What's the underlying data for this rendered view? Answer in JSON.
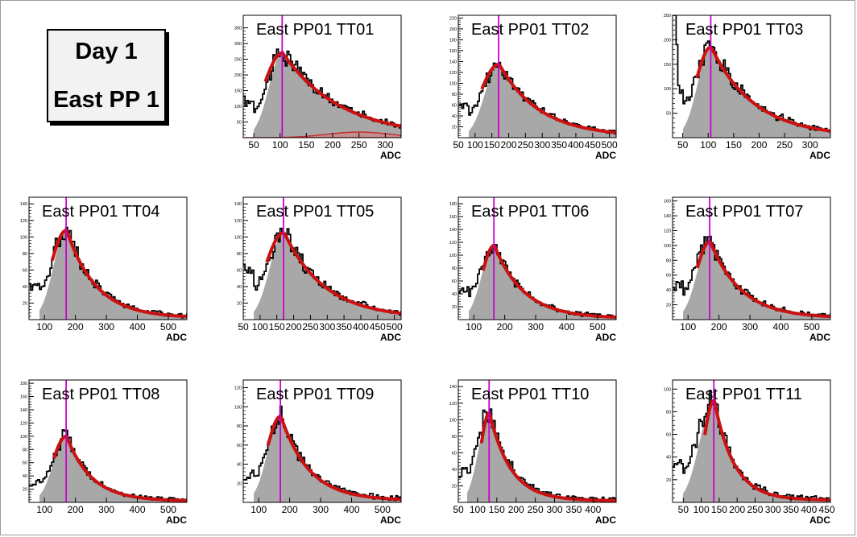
{
  "header": {
    "line1": "Day 1",
    "line2": "East PP 1"
  },
  "colors": {
    "hist_fill": "#a8a8a8",
    "hist_line": "#000000",
    "fit": "#cc1111",
    "marker": "#cc00cc",
    "frame": "#000000"
  },
  "chart_data": [
    {
      "type": "area",
      "title": "East PP01 TT01",
      "xlabel": "ADC",
      "xlim": [
        30,
        330
      ],
      "ylim": [
        0,
        390
      ],
      "xticks": [
        50,
        100,
        150,
        200,
        250,
        300
      ],
      "yticks": [
        50,
        100,
        150,
        200,
        250,
        300,
        350
      ],
      "peak_x": 104,
      "peak_y": 270,
      "fit_range": [
        72,
        330
      ],
      "fit_decay": 110,
      "low_level": 100,
      "marker_x": 104,
      "extra_fit": {
        "peak_x": 250,
        "peak_y": 18
      }
    },
    {
      "type": "area",
      "title": "East PP01 TT02",
      "xlabel": "ADC",
      "xlim": [
        50,
        520
      ],
      "ylim": [
        0,
        225
      ],
      "xticks": [
        50,
        100,
        150,
        200,
        250,
        300,
        350,
        400,
        450,
        500
      ],
      "yticks": [
        20,
        40,
        60,
        80,
        100,
        120,
        140,
        160,
        180,
        200,
        220
      ],
      "peak_x": 170,
      "peak_y": 135,
      "fit_range": [
        120,
        520
      ],
      "fit_decay": 120,
      "low_level": 55,
      "marker_x": 170
    },
    {
      "type": "area",
      "title": "East PP01 TT03",
      "xlabel": "ADC",
      "xlim": [
        30,
        340
      ],
      "ylim": [
        0,
        250
      ],
      "xticks": [
        50,
        100,
        150,
        200,
        250,
        300
      ],
      "yticks": [
        50,
        100,
        150,
        200,
        250
      ],
      "peak_x": 105,
      "peak_y": 185,
      "fit_range": [
        78,
        340
      ],
      "fit_decay": 85,
      "low_level": 90,
      "marker_x": 105,
      "low_spike": 260
    },
    {
      "type": "area",
      "title": "East PP01 TT04",
      "xlabel": "ADC",
      "xlim": [
        50,
        560
      ],
      "ylim": [
        0,
        148
      ],
      "xticks": [
        100,
        200,
        300,
        400,
        500
      ],
      "yticks": [
        20,
        40,
        60,
        80,
        100,
        120,
        140
      ],
      "peak_x": 170,
      "peak_y": 108,
      "fit_range": [
        125,
        560
      ],
      "fit_decay": 95,
      "low_level": 35,
      "marker_x": 170
    },
    {
      "type": "area",
      "title": "East PP01 TT05",
      "xlabel": "ADC",
      "xlim": [
        50,
        520
      ],
      "ylim": [
        0,
        148
      ],
      "xticks": [
        50,
        100,
        150,
        200,
        250,
        300,
        350,
        400,
        450,
        500
      ],
      "yticks": [
        20,
        40,
        60,
        80,
        100,
        120,
        140
      ],
      "peak_x": 170,
      "peak_y": 105,
      "fit_range": [
        120,
        520
      ],
      "fit_decay": 120,
      "low_level": 55,
      "marker_x": 170
    },
    {
      "type": "area",
      "title": "East PP01 TT06",
      "xlabel": "ADC",
      "xlim": [
        50,
        560
      ],
      "ylim": [
        0,
        190
      ],
      "xticks": [
        100,
        200,
        300,
        400,
        500
      ],
      "yticks": [
        20,
        40,
        60,
        80,
        100,
        120,
        140,
        160,
        180
      ],
      "peak_x": 165,
      "peak_y": 115,
      "fit_range": [
        130,
        560
      ],
      "fit_decay": 95,
      "low_level": 40,
      "marker_x": 165
    },
    {
      "type": "area",
      "title": "East PP01 TT07",
      "xlabel": "ADC",
      "xlim": [
        50,
        560
      ],
      "ylim": [
        0,
        165
      ],
      "xticks": [
        100,
        200,
        300,
        400,
        500
      ],
      "yticks": [
        20,
        40,
        60,
        80,
        100,
        120,
        140,
        160
      ],
      "peak_x": 170,
      "peak_y": 105,
      "fit_range": [
        130,
        560
      ],
      "fit_decay": 100,
      "low_level": 40,
      "marker_x": 170
    },
    {
      "type": "area",
      "title": "East PP01 TT08",
      "xlabel": "ADC",
      "xlim": [
        50,
        560
      ],
      "ylim": [
        0,
        185
      ],
      "xticks": [
        100,
        200,
        300,
        400,
        500
      ],
      "yticks": [
        20,
        40,
        60,
        80,
        100,
        120,
        140,
        160,
        180
      ],
      "peak_x": 170,
      "peak_y": 100,
      "fit_range": [
        130,
        560
      ],
      "fit_decay": 80,
      "low_level": 20,
      "marker_x": 170
    },
    {
      "type": "area",
      "title": "East PP01 TT09",
      "xlabel": "ADC",
      "xlim": [
        50,
        560
      ],
      "ylim": [
        0,
        128
      ],
      "xticks": [
        100,
        200,
        300,
        400,
        500
      ],
      "yticks": [
        20,
        40,
        60,
        80,
        100,
        120
      ],
      "peak_x": 170,
      "peak_y": 90,
      "fit_range": [
        130,
        560
      ],
      "fit_decay": 90,
      "low_level": 18,
      "marker_x": 170
    },
    {
      "type": "area",
      "title": "East PP01 TT10",
      "xlabel": "ADC",
      "xlim": [
        50,
        460
      ],
      "ylim": [
        0,
        148
      ],
      "xticks": [
        50,
        100,
        150,
        200,
        250,
        300,
        350,
        400
      ],
      "yticks": [
        20,
        40,
        60,
        80,
        100,
        120,
        140
      ],
      "peak_x": 130,
      "peak_y": 108,
      "fit_range": [
        110,
        460
      ],
      "fit_decay": 55,
      "low_level": 30,
      "marker_x": 130
    },
    {
      "type": "area",
      "title": "East PP01 TT11",
      "xlabel": "ADC",
      "xlim": [
        20,
        460
      ],
      "ylim": [
        0,
        108
      ],
      "xticks": [
        50,
        100,
        150,
        200,
        250,
        300,
        350,
        400,
        450
      ],
      "yticks": [
        20,
        40,
        60,
        80,
        100
      ],
      "peak_x": 135,
      "peak_y": 90,
      "fit_range": [
        110,
        460
      ],
      "fit_decay": 55,
      "low_level": 30,
      "marker_x": 135
    }
  ]
}
